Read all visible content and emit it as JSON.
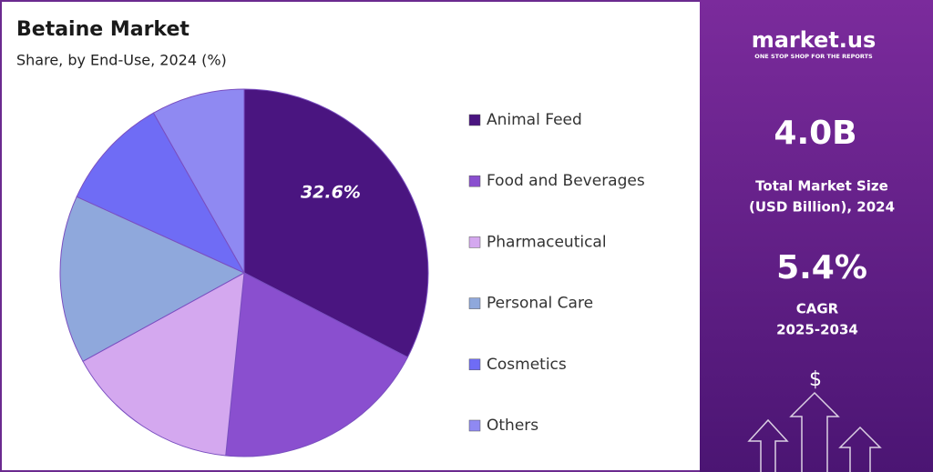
{
  "chart_data": {
    "type": "pie",
    "title": "Betaine Market",
    "subtitle": "Share, by End-Use, 2024 (%)",
    "categories": [
      "Animal Feed",
      "Food and Beverages",
      "Pharmaceutical",
      "Personal Care",
      "Cosmetics",
      "Others"
    ],
    "values": [
      32.6,
      19.0,
      15.4,
      14.8,
      10.0,
      8.2
    ],
    "value_labels": [
      "32.6%",
      null,
      null,
      null,
      null,
      null
    ],
    "colors": [
      "#4a1580",
      "#8a4fcf",
      "#d4a8ef",
      "#8fa8dc",
      "#6f6cf5",
      "#8f89f2"
    ],
    "legend": "right"
  },
  "panel": {
    "brand": "market.us",
    "tagline": "ONE STOP SHOP FOR THE REPORTS",
    "market_size": "4.0B",
    "market_size_label_1": "Total Market Size",
    "market_size_label_2": "(USD Billion), 2024",
    "cagr": "5.4%",
    "cagr_label_1": "CAGR",
    "cagr_label_2": "2025-2034",
    "icon": "$"
  }
}
